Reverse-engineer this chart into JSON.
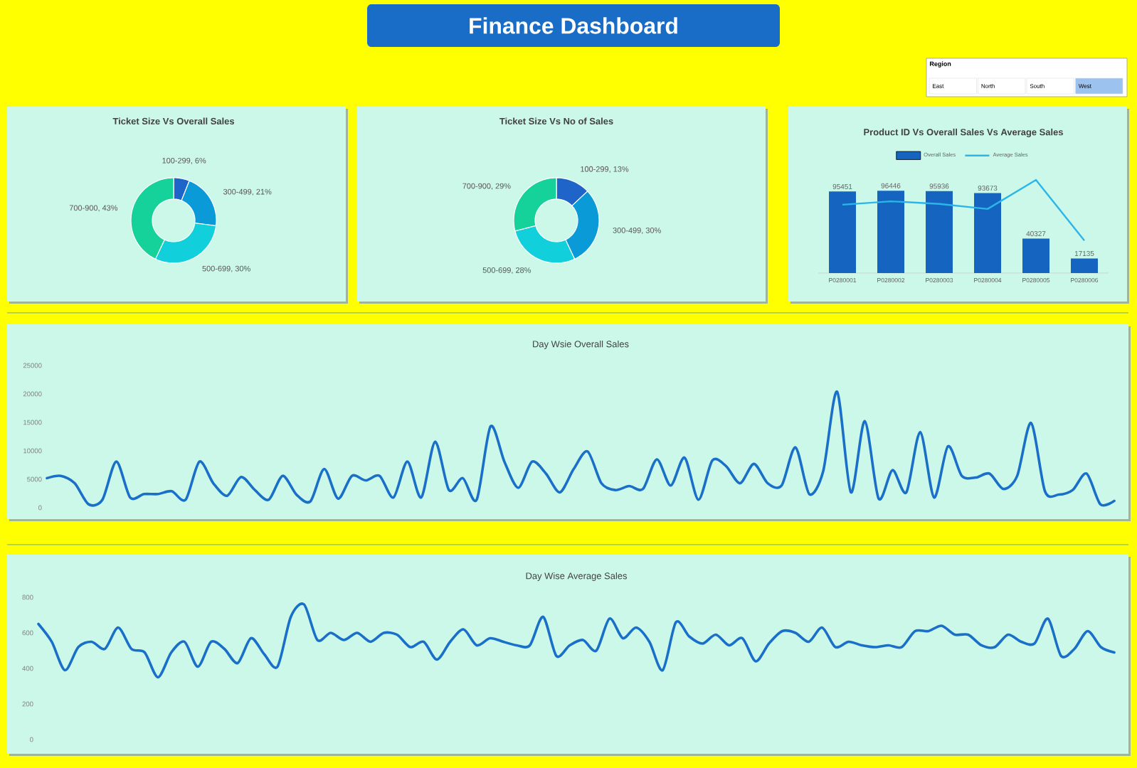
{
  "chart_data": [
    {
      "type": "other",
      "title": "Finance Dashboard"
    },
    {
      "type": "other",
      "title": "Region",
      "annotations": [
        "East",
        "North",
        "South",
        "West"
      ]
    },
    {
      "type": "donut",
      "title": "Ticket Size Vs Overall Sales",
      "categories": [
        "100-299",
        "300-499",
        "500-699",
        "700-900"
      ],
      "values": [
        6,
        21,
        30,
        43
      ],
      "value_labels": [
        ", 6%",
        ", 21%",
        ", 30%",
        ", 43%"
      ],
      "colors": [
        "#1f64c8",
        "#0b9ad8",
        "#12cfdc",
        "#14d29a"
      ]
    },
    {
      "type": "donut",
      "title": "Ticket Size Vs No of Sales",
      "categories": [
        "100-299",
        "300-499",
        "500-699",
        "700-900"
      ],
      "values": [
        13,
        30,
        28,
        29
      ],
      "value_labels": [
        ", 13%",
        ", 30%",
        ", 28%",
        ", 29%"
      ],
      "colors": [
        "#1f64c8",
        "#0b9ad8",
        "#12cfdc",
        "#14d29a"
      ]
    },
    {
      "type": "bar",
      "title": "Product ID Vs Overall Sales Vs Average Sales",
      "categories": [
        "P0280001",
        "P0280002",
        "P0280003",
        "P0280004",
        "P0280005",
        "P0280006"
      ],
      "legend": "top",
      "series": [
        {
          "name": "Overall Sales",
          "color": "#1565c0",
          "values": [
            95451,
            96446,
            95936,
            93673,
            40327,
            17135
          ],
          "value_labels": [
            "95451",
            "96446",
            "95936",
            "93673",
            "40327",
            "17135"
          ]
        },
        {
          "name": "Average Sales",
          "type": "line",
          "color": "#2bb5e8",
          "values": [
            80000,
            84000,
            81000,
            75000,
            109000,
            38000
          ]
        }
      ]
    },
    {
      "type": "line",
      "title": "Day Wsie Overall Sales",
      "color": "#1a6fc8",
      "ylim": [
        0,
        25000
      ],
      "yticks": [
        0,
        5000,
        10000,
        15000,
        20000,
        25000
      ],
      "categories": [
        null,
        null,
        null,
        null,
        null,
        null,
        null,
        null,
        null,
        null,
        null,
        null,
        null,
        null,
        null,
        null,
        null,
        null,
        null,
        null,
        null,
        null,
        null,
        null,
        null,
        null,
        null,
        null,
        null,
        null,
        null,
        null,
        null,
        null,
        null,
        null,
        null,
        null,
        null,
        null,
        null,
        null,
        null,
        null,
        null,
        null,
        null,
        null,
        null,
        null,
        null,
        null,
        null,
        null,
        null,
        null,
        null,
        null,
        null,
        null,
        null,
        null,
        null,
        null,
        null,
        null,
        null,
        null,
        null,
        null,
        null,
        null,
        null,
        null,
        null,
        null,
        null,
        null
      ],
      "values": [
        5200,
        5600,
        4300,
        600,
        1400,
        8100,
        1800,
        2400,
        2400,
        2900,
        1400,
        8100,
        4300,
        2100,
        5400,
        3100,
        1400,
        5600,
        2300,
        1100,
        6800,
        1600,
        5600,
        4800,
        5600,
        1800,
        8100,
        1800,
        11600,
        3100,
        5200,
        1400,
        14300,
        8100,
        3500,
        8100,
        6000,
        2700,
        6800,
        9900,
        4300,
        3100,
        3800,
        3300,
        8500,
        3900,
        8800,
        1400,
        8300,
        7300,
        4300,
        7700,
        4300,
        3900,
        10600,
        2400,
        6400,
        20400,
        2700,
        15200,
        1600,
        6600,
        2700,
        13300,
        1800,
        10800,
        5600,
        5300,
        6000,
        3300,
        5600,
        14900,
        2900,
        2300,
        3100,
        6000,
        600,
        1200
      ]
    },
    {
      "type": "line",
      "title": "Day Wise Average Sales",
      "color": "#1a6fc8",
      "ylim": [
        0,
        800
      ],
      "yticks": [
        0,
        200,
        400,
        600,
        800
      ],
      "categories": [
        null,
        null,
        null,
        null,
        null,
        null,
        null,
        null,
        null,
        null,
        null,
        null,
        null,
        null,
        null,
        null,
        null,
        null,
        null,
        null,
        null,
        null,
        null,
        null,
        null,
        null,
        null,
        null,
        null,
        null,
        null,
        null,
        null,
        null,
        null,
        null,
        null,
        null,
        null,
        null,
        null,
        null,
        null,
        null,
        null,
        null,
        null,
        null,
        null,
        null,
        null,
        null,
        null,
        null,
        null,
        null,
        null,
        null,
        null,
        null,
        null,
        null,
        null,
        null,
        null,
        null,
        null,
        null,
        null,
        null,
        null,
        null,
        null,
        null,
        null,
        null,
        null,
        null,
        null,
        null,
        null,
        null
      ],
      "values": [
        650,
        550,
        390,
        520,
        550,
        510,
        630,
        510,
        490,
        350,
        490,
        550,
        410,
        550,
        510,
        430,
        570,
        480,
        410,
        690,
        760,
        560,
        600,
        560,
        600,
        550,
        600,
        590,
        520,
        550,
        450,
        550,
        620,
        530,
        570,
        550,
        530,
        530,
        690,
        470,
        530,
        560,
        500,
        680,
        570,
        630,
        550,
        390,
        660,
        580,
        540,
        590,
        530,
        570,
        440,
        540,
        610,
        600,
        550,
        630,
        520,
        550,
        530,
        520,
        530,
        520,
        610,
        610,
        640,
        590,
        590,
        530,
        520,
        590,
        550,
        540,
        680,
        470,
        510,
        610,
        520,
        490
      ]
    }
  ]
}
